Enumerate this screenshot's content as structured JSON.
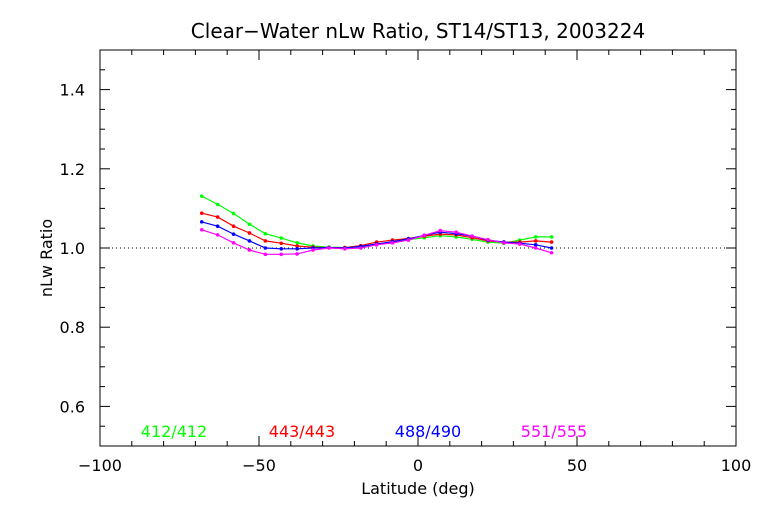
{
  "chart_data": {
    "type": "line",
    "title": "Clear−Water nLw Ratio, ST14/ST13, 2003224",
    "xlabel": "Latitude (deg)",
    "ylabel": "nLw Ratio",
    "xlim": [
      -100,
      100
    ],
    "ylim": [
      0.5,
      1.5
    ],
    "xticks": [
      -100,
      -50,
      0,
      50,
      100
    ],
    "xtick_labels": [
      "−100",
      "−50",
      "0",
      "50",
      "100"
    ],
    "yticks": [
      0.6,
      0.8,
      1.0,
      1.2,
      1.4
    ],
    "ytick_labels": [
      "0.6",
      "0.8",
      "1.0",
      "1.2",
      "1.4"
    ],
    "reference_line": 1.0,
    "grid": false,
    "legend": "bottom, inside plot",
    "x": [
      -68,
      -63,
      -58,
      -53,
      -48,
      -43,
      -38,
      -33,
      -28,
      -23,
      -18,
      -13,
      -8,
      -3,
      2,
      7,
      12,
      17,
      22,
      27,
      32,
      37,
      42
    ],
    "series": [
      {
        "name": "412/412",
        "color": "#00ff00",
        "values": [
          1.131,
          1.11,
          1.087,
          1.06,
          1.036,
          1.025,
          1.013,
          1.005,
          1.002,
          1.001,
          1.003,
          1.01,
          1.015,
          1.021,
          1.026,
          1.031,
          1.028,
          1.022,
          1.015,
          1.012,
          1.02,
          1.028,
          1.028
        ]
      },
      {
        "name": "443/443",
        "color": "#ff0000",
        "values": [
          1.088,
          1.078,
          1.055,
          1.038,
          1.018,
          1.012,
          1.005,
          1.002,
          1.001,
          1.001,
          1.006,
          1.015,
          1.02,
          1.024,
          1.03,
          1.035,
          1.033,
          1.026,
          1.018,
          1.015,
          1.015,
          1.018,
          1.015
        ]
      },
      {
        "name": "488/490",
        "color": "#0000ff",
        "values": [
          1.066,
          1.055,
          1.035,
          1.018,
          1.0,
          0.998,
          0.998,
          1.0,
          1.001,
          1.0,
          1.004,
          1.01,
          1.016,
          1.023,
          1.032,
          1.04,
          1.036,
          1.03,
          1.02,
          1.015,
          1.012,
          1.008,
          1.0
        ]
      },
      {
        "name": "551/555",
        "color": "#ff00ff",
        "values": [
          1.046,
          1.033,
          1.013,
          0.995,
          0.984,
          0.984,
          0.985,
          0.995,
          1.0,
          0.998,
          1.0,
          1.008,
          1.013,
          1.02,
          1.032,
          1.044,
          1.04,
          1.03,
          1.021,
          1.013,
          1.01,
          1.0,
          0.988
        ]
      }
    ]
  }
}
